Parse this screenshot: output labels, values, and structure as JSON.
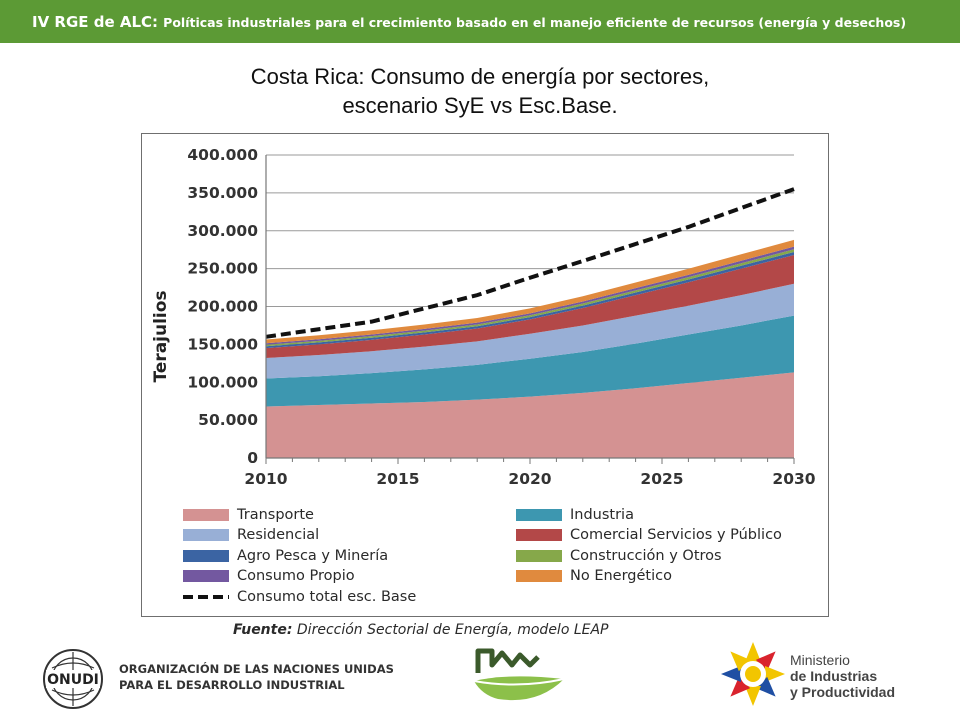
{
  "header": {
    "title": "IV RGE de ALC:",
    "subtitle": "Políticas industriales para el crecimiento basado en el manejo eficiente de recursos  (energía y desechos)"
  },
  "slide_title": {
    "line1": "Costa Rica: Consumo de energía por sectores,",
    "line2": "escenario SyE vs Esc.Base."
  },
  "colors": {
    "header_bar": "#5c9a35",
    "Transporte": "#d49292",
    "Industria": "#3d97b0",
    "Residencial": "#98afd6",
    "Comercial Servicios y Público": "#b34848",
    "Agro Pesca y Minería": "#3b64a3",
    "Construcción y Otros": "#86a84a",
    "Consumo Propio": "#7358a0",
    "No Energético": "#e08a3e",
    "Consumo total esc. Base": "#111111"
  },
  "chart_data": {
    "type": "area",
    "stacked": true,
    "ylabel": "Terajulios",
    "xlabel": "",
    "xlim": [
      2010,
      2030
    ],
    "ylim": [
      0,
      400000
    ],
    "x_ticks": [
      "2010",
      "2015",
      "2020",
      "2025",
      "2030"
    ],
    "y_ticks": [
      "0",
      "50.000",
      "100.000",
      "150.000",
      "200.000",
      "250.000",
      "300.000",
      "350.000",
      "400.000"
    ],
    "grid": true,
    "legend_position": "bottom",
    "x": [
      2010,
      2012,
      2014,
      2016,
      2018,
      2020,
      2022,
      2024,
      2026,
      2028,
      2030
    ],
    "series": [
      {
        "name": "Transporte",
        "values": [
          68000,
          70000,
          72000,
          74000,
          77000,
          81000,
          86000,
          92000,
          99000,
          106000,
          113000
        ]
      },
      {
        "name": "Industria",
        "values": [
          37000,
          38000,
          40000,
          43000,
          46000,
          50000,
          54000,
          59000,
          64000,
          69000,
          75000
        ]
      },
      {
        "name": "Residencial",
        "values": [
          27000,
          28000,
          29000,
          30000,
          31000,
          33000,
          35000,
          37000,
          38000,
          40000,
          42000
        ]
      },
      {
        "name": "Comercial Servicios y Público",
        "values": [
          13000,
          14000,
          15000,
          16000,
          17000,
          19000,
          23000,
          27000,
          31000,
          35000,
          38000
        ]
      },
      {
        "name": "Agro Pesca y Minería",
        "values": [
          2500,
          2600,
          2700,
          2800,
          2900,
          3000,
          3200,
          3400,
          3600,
          3800,
          4000
        ]
      },
      {
        "name": "Construcción y Otros",
        "values": [
          2000,
          2100,
          2200,
          2300,
          2400,
          2500,
          2700,
          2900,
          3100,
          3300,
          3500
        ]
      },
      {
        "name": "Consumo Propio",
        "values": [
          2000,
          2100,
          2200,
          2300,
          2400,
          2500,
          2700,
          2900,
          3100,
          3300,
          3500
        ]
      },
      {
        "name": "No Energético",
        "values": [
          5000,
          5200,
          5500,
          5800,
          6100,
          6500,
          7000,
          7500,
          8000,
          8500,
          9000
        ]
      }
    ],
    "line_series": [
      {
        "name": "Consumo total esc. Base",
        "style": "dashed",
        "x": [
          2010,
          2014,
          2018,
          2020,
          2022,
          2026,
          2030
        ],
        "values": [
          160000,
          180000,
          215000,
          238000,
          260000,
          305000,
          355000
        ]
      }
    ]
  },
  "legend": [
    {
      "label": "Transporte",
      "kind": "swatch"
    },
    {
      "label": "Industria",
      "kind": "swatch"
    },
    {
      "label": "Residencial",
      "kind": "swatch"
    },
    {
      "label": "Comercial Servicios y Público",
      "kind": "swatch"
    },
    {
      "label": "Agro Pesca y Minería",
      "kind": "swatch"
    },
    {
      "label": "Construcción y Otros",
      "kind": "swatch"
    },
    {
      "label": "Consumo Propio",
      "kind": "swatch"
    },
    {
      "label": "No Energético",
      "kind": "swatch"
    },
    {
      "label": "Consumo total esc. Base",
      "kind": "dash"
    }
  ],
  "source": {
    "label": "Fuente:",
    "text": "Dirección Sectorial de Energía, modelo LEAP"
  },
  "footer": {
    "onudi_logo_text": "ONUDI",
    "onudi_line1": "ORGANIZACIÓN DE LAS NACIONES UNIDAS",
    "onudi_line2": "PARA EL DESARROLLO INDUSTRIAL",
    "ministry_line1": "Ministerio",
    "ministry_line2": "de Industrias",
    "ministry_line3": "y Productividad"
  }
}
